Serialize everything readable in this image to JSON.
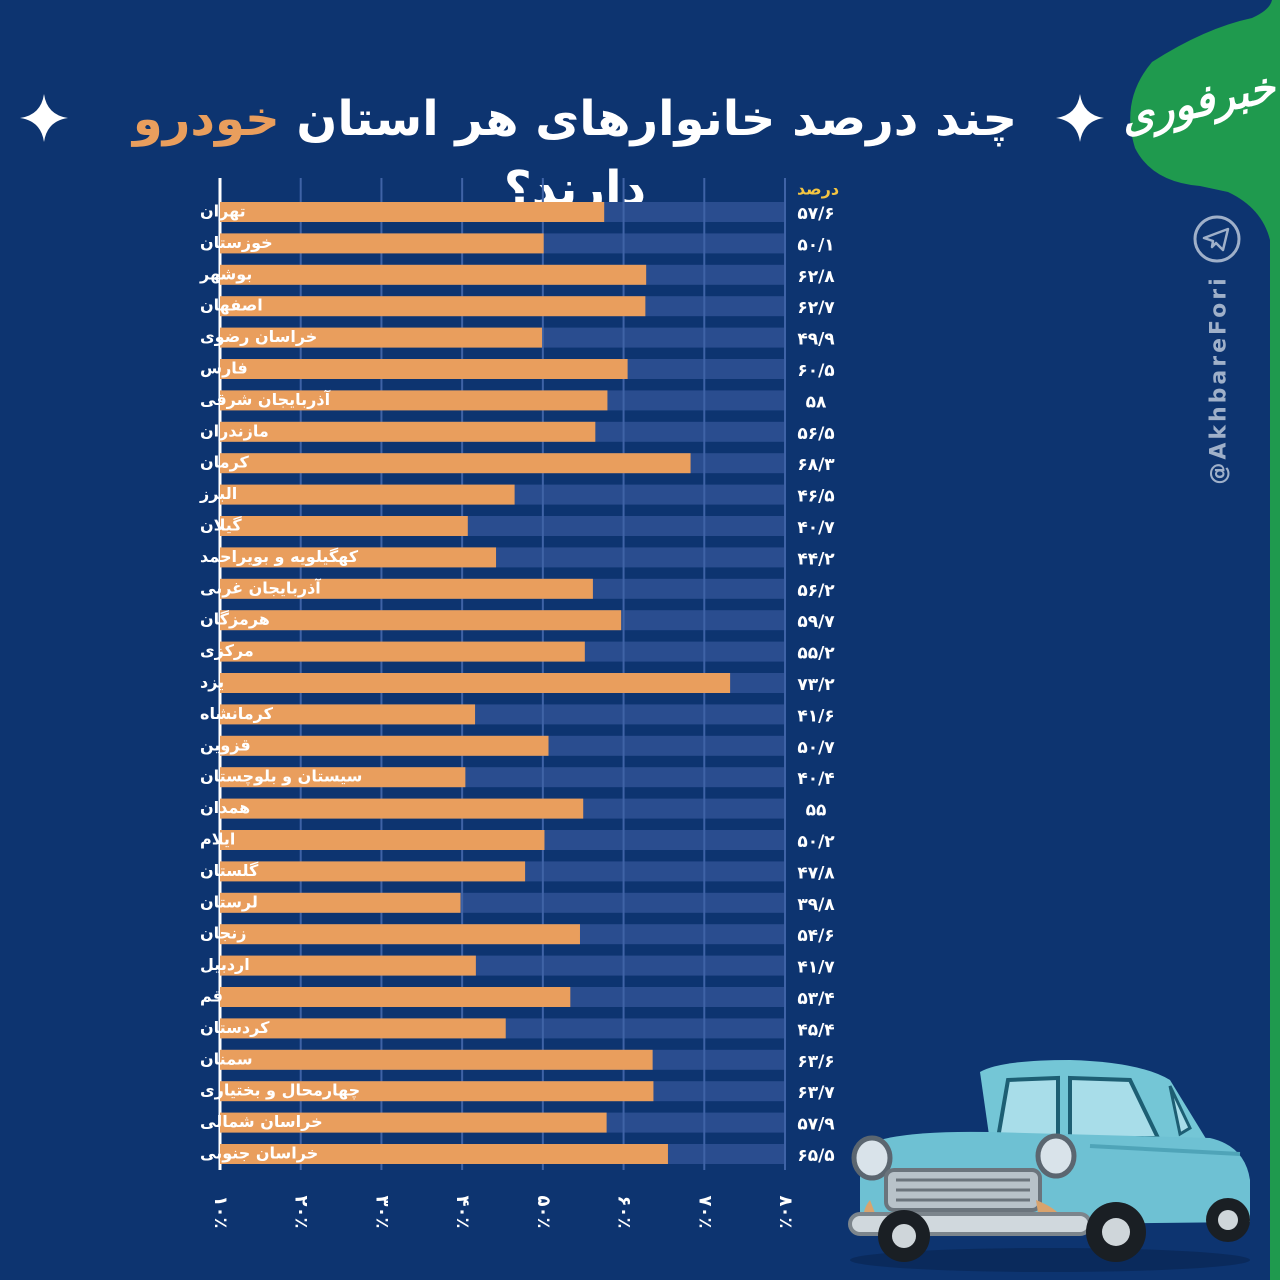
{
  "title": {
    "part1": "چند درصد خانوارهای هر استان ",
    "highlight": "خودرو",
    "part2": " دارند؟"
  },
  "brand": {
    "name": "خبرفوری",
    "handle": "@AkhbareFori"
  },
  "icons": {
    "telegram": "telegram-icon",
    "sparkle": "sparkle-icon",
    "car": "car-illustration"
  },
  "colors": {
    "background": "#0d3470",
    "track": "#2a4d8f",
    "bar": "#e99e5d",
    "unit_label": "#f4c542",
    "brand_green": "#1f9a4e"
  },
  "chart_data": {
    "type": "bar",
    "orientation": "horizontal",
    "value_header": "درصد",
    "categories": [
      "تهران",
      "خوزستان",
      "بوشهر",
      "اصفهان",
      "خراسان رضوی",
      "فارس",
      "آذربایجان شرقی",
      "مازندران",
      "کرمان",
      "البرز",
      "گیلان",
      "کهگیلویه و بویراحمد",
      "آذربایجان غربی",
      "هرمزگان",
      "مرکزی",
      "یزد",
      "کرمانشاه",
      "قزوین",
      "سیستان و بلوچستان",
      "همدان",
      "ایلام",
      "گلستان",
      "لرستان",
      "زنجان",
      "اردبیل",
      "قم",
      "کردستان",
      "سمنان",
      "چهارمحال و بختیاری",
      "خراسان شمالی",
      "خراسان جنوبی"
    ],
    "values": [
      57.6,
      50.1,
      62.8,
      62.7,
      49.9,
      60.5,
      58,
      56.5,
      68.3,
      46.5,
      40.7,
      44.2,
      56.2,
      59.7,
      55.2,
      73.2,
      41.6,
      50.7,
      40.4,
      55,
      50.2,
      47.8,
      39.8,
      54.6,
      41.7,
      53.4,
      45.4,
      63.6,
      63.7,
      57.9,
      65.5
    ],
    "value_labels": [
      "۵۷/۶",
      "۵۰/۱",
      "۶۲/۸",
      "۶۲/۷",
      "۴۹/۹",
      "۶۰/۵",
      "۵۸",
      "۵۶/۵",
      "۶۸/۳",
      "۴۶/۵",
      "۴۰/۷",
      "۴۴/۲",
      "۵۶/۲",
      "۵۹/۷",
      "۵۵/۲",
      "۷۳/۲",
      "۴۱/۶",
      "۵۰/۷",
      "۴۰/۴",
      "۵۵",
      "۵۰/۲",
      "۴۷/۸",
      "۳۹/۸",
      "۵۴/۶",
      "۴۱/۷",
      "۵۳/۴",
      "۴۵/۴",
      "۶۳/۶",
      "۶۳/۷",
      "۵۷/۹",
      "۶۵/۵"
    ],
    "xlim": [
      10,
      80
    ],
    "x_ticks": [
      10,
      20,
      30,
      40,
      50,
      60,
      70,
      80
    ],
    "x_tick_labels": [
      "۱۰٪",
      "۲۰٪",
      "۳۰٪",
      "۴۰٪",
      "۵۰٪",
      "۶۰٪",
      "۷۰٪",
      "۸۰٪"
    ],
    "grid": true,
    "legend": "none"
  }
}
